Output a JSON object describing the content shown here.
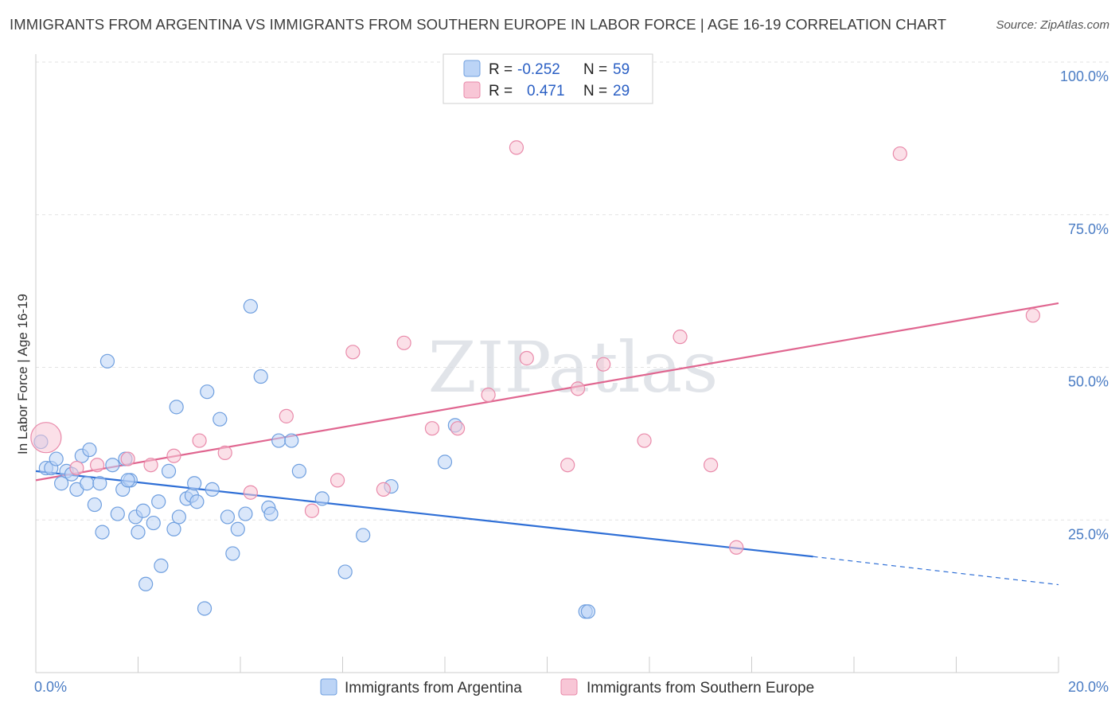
{
  "title": "IMMIGRANTS FROM ARGENTINA VS IMMIGRANTS FROM SOUTHERN EUROPE IN LABOR FORCE | AGE 16-19 CORRELATION CHART",
  "source": "Source: ZipAtlas.com",
  "watermark": "ZIPatlas",
  "legend_top": [
    {
      "r_label": "R =",
      "r_value": "-0.252",
      "n_label": "N =",
      "n_value": "59"
    },
    {
      "r_label": "R =",
      "r_value": "0.471",
      "n_label": "N =",
      "n_value": "29"
    }
  ],
  "chart_data": {
    "type": "scatter",
    "title": "IMMIGRANTS FROM ARGENTINA VS IMMIGRANTS FROM SOUTHERN EUROPE IN LABOR FORCE | AGE 16-19 CORRELATION CHART",
    "xlabel": "",
    "ylabel": "In Labor Force | Age 16-19",
    "xlim": [
      0,
      20
    ],
    "ylim": [
      0,
      100
    ],
    "x_tick_labels": [
      "0.0%",
      "20.0%"
    ],
    "y_tick_labels": [
      "25.0%",
      "50.0%",
      "75.0%",
      "100.0%"
    ],
    "y_ticks": [
      25,
      50,
      75,
      100
    ],
    "grid": true,
    "legend_position": "top-center",
    "series": [
      {
        "name": "Immigrants from Argentina",
        "color": "#8ab4f0",
        "fill": "#bcd4f6",
        "stroke": "#6f9fdf",
        "r": -0.252,
        "n": 59,
        "trend": {
          "x0": 0,
          "y0": 33.0,
          "x1": 15.2,
          "y1": 19.0,
          "dash_to_x": 20.0,
          "dash_to_y": 14.4
        },
        "points": [
          [
            0.1,
            37.8
          ],
          [
            0.2,
            33.5
          ],
          [
            0.3,
            33.5
          ],
          [
            0.4,
            35.0
          ],
          [
            0.5,
            31.0
          ],
          [
            0.6,
            33.0
          ],
          [
            0.7,
            32.5
          ],
          [
            0.8,
            30.0
          ],
          [
            0.9,
            35.5
          ],
          [
            1.0,
            31.0
          ],
          [
            1.05,
            36.5
          ],
          [
            1.15,
            27.5
          ],
          [
            1.25,
            31.0
          ],
          [
            1.3,
            23.0
          ],
          [
            1.4,
            51.0
          ],
          [
            1.5,
            34.0
          ],
          [
            1.6,
            26.0
          ],
          [
            1.7,
            30.0
          ],
          [
            1.75,
            35.0
          ],
          [
            1.85,
            31.5
          ],
          [
            1.95,
            25.5
          ],
          [
            2.0,
            23.0
          ],
          [
            2.1,
            26.5
          ],
          [
            2.15,
            14.5
          ],
          [
            2.3,
            24.5
          ],
          [
            2.4,
            28.0
          ],
          [
            2.45,
            17.5
          ],
          [
            2.6,
            33.0
          ],
          [
            2.7,
            23.5
          ],
          [
            2.75,
            43.5
          ],
          [
            2.8,
            25.5
          ],
          [
            2.95,
            28.5
          ],
          [
            3.05,
            29.0
          ],
          [
            3.1,
            31.0
          ],
          [
            3.15,
            28.0
          ],
          [
            3.3,
            10.5
          ],
          [
            3.35,
            46.0
          ],
          [
            3.45,
            30.0
          ],
          [
            3.6,
            41.5
          ],
          [
            3.75,
            25.5
          ],
          [
            3.85,
            19.5
          ],
          [
            3.95,
            23.5
          ],
          [
            4.1,
            26.0
          ],
          [
            4.2,
            60.0
          ],
          [
            4.4,
            48.5
          ],
          [
            4.55,
            27.0
          ],
          [
            4.6,
            26.0
          ],
          [
            4.75,
            38.0
          ],
          [
            5.0,
            38.0
          ],
          [
            5.15,
            33.0
          ],
          [
            5.6,
            28.5
          ],
          [
            6.05,
            16.5
          ],
          [
            6.4,
            22.5
          ],
          [
            6.95,
            30.5
          ],
          [
            8.0,
            34.5
          ],
          [
            8.2,
            40.5
          ],
          [
            10.75,
            10.0
          ],
          [
            10.8,
            10.0
          ],
          [
            1.8,
            31.5
          ]
        ]
      },
      {
        "name": "Immigrants from Southern Europe",
        "color": "#f4a6bf",
        "fill": "#f8c6d6",
        "stroke": "#e98aaa",
        "r": 0.471,
        "n": 29,
        "trend": {
          "x0": 0,
          "y0": 31.5,
          "x1": 20.0,
          "y1": 60.5
        },
        "points": [
          [
            0.2,
            38.5
          ],
          [
            0.8,
            33.5
          ],
          [
            1.2,
            34.0
          ],
          [
            1.8,
            35.0
          ],
          [
            2.25,
            34.0
          ],
          [
            2.7,
            35.5
          ],
          [
            3.2,
            38.0
          ],
          [
            3.7,
            36.0
          ],
          [
            4.2,
            29.5
          ],
          [
            4.9,
            42.0
          ],
          [
            5.4,
            26.5
          ],
          [
            5.9,
            31.5
          ],
          [
            6.2,
            52.5
          ],
          [
            6.8,
            30.0
          ],
          [
            7.2,
            54.0
          ],
          [
            7.75,
            40.0
          ],
          [
            8.25,
            40.0
          ],
          [
            8.85,
            45.5
          ],
          [
            9.4,
            86.0
          ],
          [
            9.6,
            51.5
          ],
          [
            10.4,
            34.0
          ],
          [
            10.6,
            46.5
          ],
          [
            11.1,
            50.5
          ],
          [
            11.9,
            38.0
          ],
          [
            12.6,
            55.0
          ],
          [
            13.2,
            34.0
          ],
          [
            13.7,
            20.5
          ],
          [
            16.9,
            85.0
          ],
          [
            19.5,
            58.5
          ]
        ]
      }
    ]
  }
}
